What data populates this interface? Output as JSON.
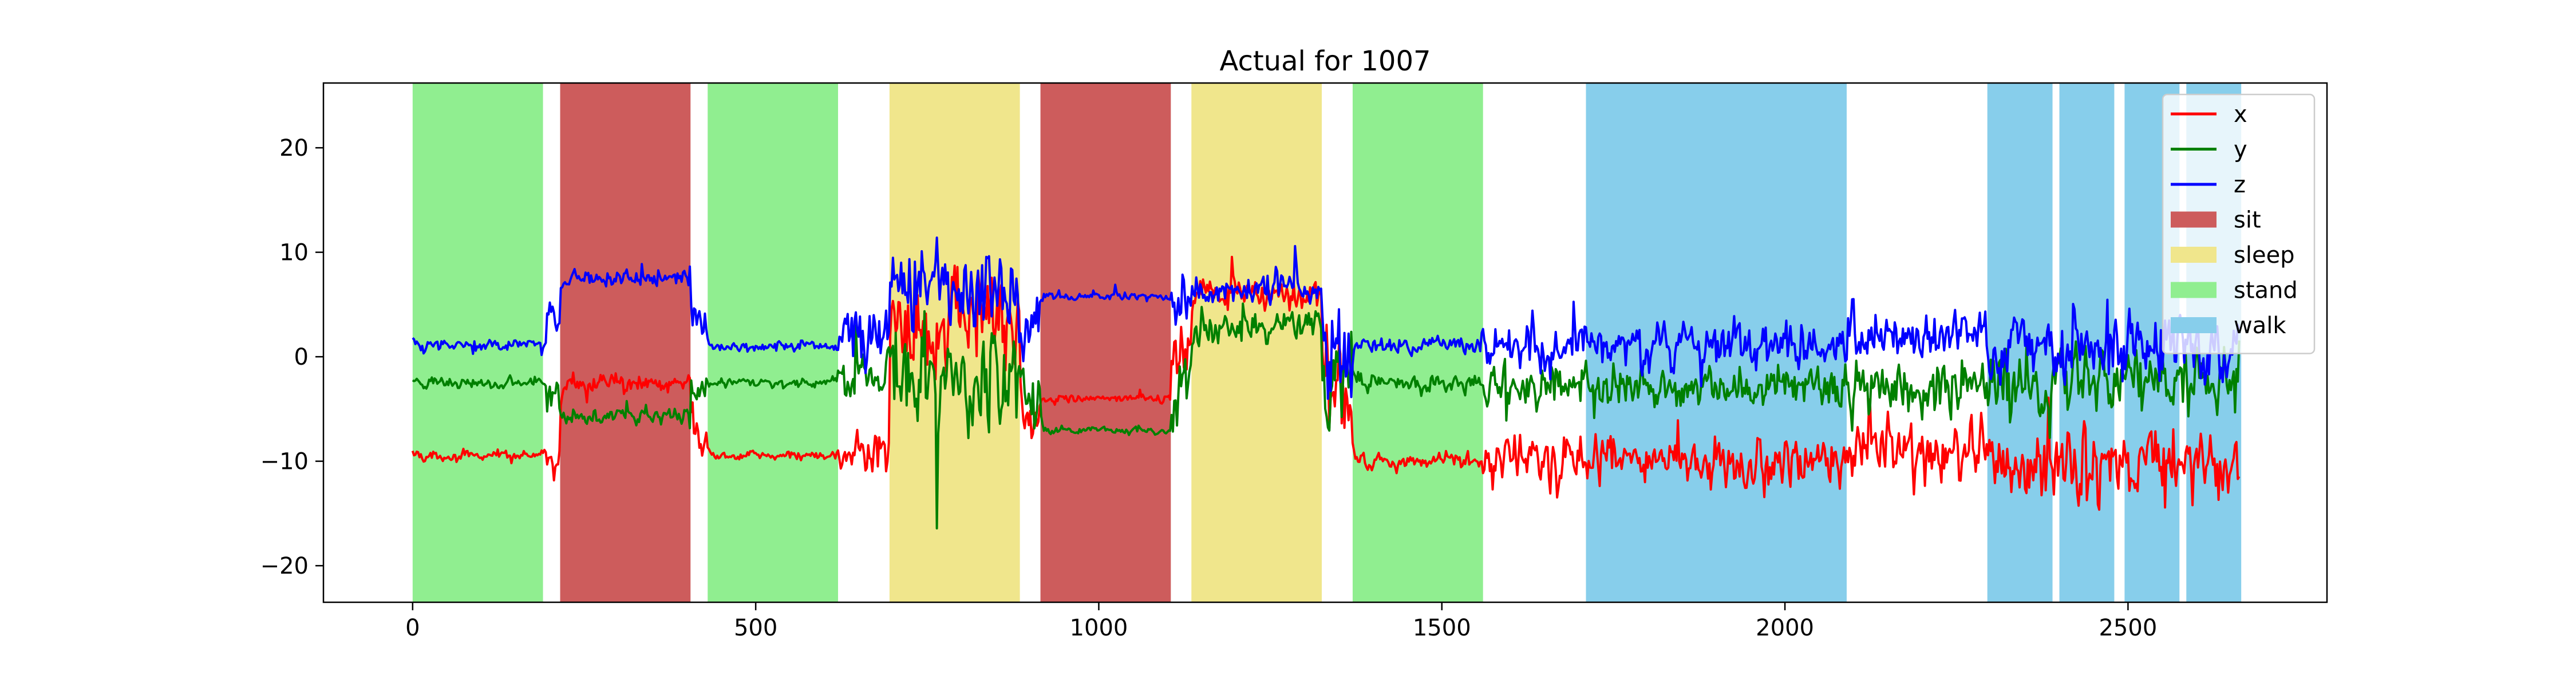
{
  "chart_data": {
    "type": "line",
    "title": "Actual for 1007",
    "xlabel": "",
    "ylabel": "",
    "xlim": [
      -130,
      2790
    ],
    "ylim": [
      -23.5,
      26.2
    ],
    "xticks": [
      0,
      500,
      1000,
      1500,
      2000,
      2500
    ],
    "yticks": [
      -20,
      -10,
      0,
      10,
      20
    ],
    "grid": false,
    "legend_position": "top-right",
    "activity_colors": {
      "sit": "#cd5c5c",
      "sleep": "#f0e68c",
      "stand": "#90ee90",
      "walk": "#87ceeb"
    },
    "activities": [
      {
        "label": "stand",
        "start": 0,
        "end": 190
      },
      {
        "label": "sit",
        "start": 215,
        "end": 405
      },
      {
        "label": "stand",
        "start": 430,
        "end": 620
      },
      {
        "label": "sleep",
        "start": 695,
        "end": 885
      },
      {
        "label": "sit",
        "start": 915,
        "end": 1105
      },
      {
        "label": "sleep",
        "start": 1135,
        "end": 1325
      },
      {
        "label": "stand",
        "start": 1370,
        "end": 1560
      },
      {
        "label": "walk",
        "start": 1710,
        "end": 2090
      },
      {
        "label": "walk",
        "start": 2295,
        "end": 2390
      },
      {
        "label": "walk",
        "start": 2400,
        "end": 2480
      },
      {
        "label": "walk",
        "start": 2495,
        "end": 2575
      },
      {
        "label": "walk",
        "start": 2585,
        "end": 2665
      }
    ],
    "series": [
      {
        "name": "x",
        "color": "#ff0000"
      },
      {
        "name": "y",
        "color": "#008000"
      },
      {
        "name": "z",
        "color": "#0000ff"
      }
    ],
    "legend": [
      {
        "label": "x",
        "kind": "line",
        "color": "#ff0000"
      },
      {
        "label": "y",
        "kind": "line",
        "color": "#008000"
      },
      {
        "label": "z",
        "kind": "line",
        "color": "#0000ff"
      },
      {
        "label": "sit",
        "kind": "patch",
        "color": "#cd5c5c"
      },
      {
        "label": "sleep",
        "kind": "patch",
        "color": "#f0e68c"
      },
      {
        "label": "stand",
        "kind": "patch",
        "color": "#90ee90"
      },
      {
        "label": "walk",
        "kind": "patch",
        "color": "#87ceeb"
      }
    ],
    "x_range": [
      0,
      2663
    ],
    "segments": [
      {
        "start": 0,
        "end": 195,
        "x": -9.5,
        "y": -2.5,
        "z": 1.2,
        "noise": 0.5
      },
      {
        "start": 195,
        "end": 215,
        "x": -10,
        "y": -4.5,
        "z": 4.5,
        "noise": 2.0
      },
      {
        "start": 215,
        "end": 405,
        "x": -2.5,
        "y": -5.5,
        "z": 7.5,
        "noise": 0.8
      },
      {
        "start": 405,
        "end": 430,
        "x": -8,
        "y": -4,
        "z": 3,
        "noise": 2.0
      },
      {
        "start": 430,
        "end": 620,
        "x": -9.5,
        "y": -2.5,
        "z": 1.0,
        "noise": 0.5
      },
      {
        "start": 620,
        "end": 695,
        "x": -9,
        "y": -2,
        "z": 2,
        "noise": 2.5
      },
      {
        "start": 695,
        "end": 885,
        "x": 4,
        "y": -2,
        "z": 7,
        "noise": 5.0
      },
      {
        "start": 885,
        "end": 915,
        "x": -6,
        "y": -4,
        "z": 3,
        "noise": 3.0
      },
      {
        "start": 915,
        "end": 1105,
        "x": -4,
        "y": -7,
        "z": 5.7,
        "noise": 0.4
      },
      {
        "start": 1105,
        "end": 1135,
        "x": 0,
        "y": -3,
        "z": 4,
        "noise": 3.0
      },
      {
        "start": 1135,
        "end": 1325,
        "x": 6,
        "y": 3,
        "z": 6.5,
        "noise": 1.5
      },
      {
        "start": 1325,
        "end": 1370,
        "x": -3,
        "y": -2,
        "z": 0,
        "noise": 5.0
      },
      {
        "start": 1370,
        "end": 1560,
        "x": -10,
        "y": -2.5,
        "z": 1.0,
        "noise": 0.8
      },
      {
        "start": 1560,
        "end": 1710,
        "x": -10,
        "y": -3,
        "z": 1.0,
        "noise": 2.5
      },
      {
        "start": 1710,
        "end": 2090,
        "x": -10,
        "y": -3,
        "z": 1.0,
        "noise": 2.2
      },
      {
        "start": 2090,
        "end": 2295,
        "x": -9,
        "y": -3,
        "z": 2,
        "noise": 2.8
      },
      {
        "start": 2295,
        "end": 2663,
        "x": -11,
        "y": -2.5,
        "z": 1.0,
        "noise": 3.5
      }
    ]
  }
}
